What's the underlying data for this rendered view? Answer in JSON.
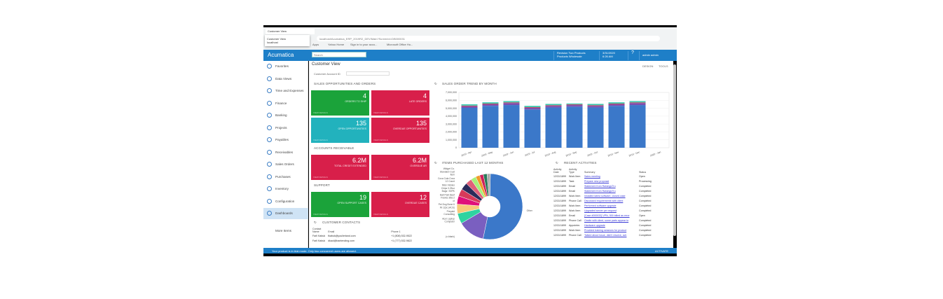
{
  "browser": {
    "tab_title": "Customer View",
    "tab_popup_title": "Customer View",
    "tab_popup_host": "localhost",
    "url": "localhost/Acumatica_ERP_2019R2_DEV/Main?ScreenId=DB000031",
    "bookmarks": [
      "Apps",
      "Yahoo Home",
      "Sign in to your acco...",
      "Microsoft Office Ho..."
    ]
  },
  "app": {
    "logo": "Acumatica",
    "search_placeholder": "Search",
    "company": "Revision Two Products",
    "branch": "Products Wholesale",
    "date": "3/31/2020",
    "time": "6:26 AM",
    "user": "admin admin"
  },
  "sidebar": {
    "items": [
      {
        "label": "Favorites",
        "icon": "star-icon"
      },
      {
        "label": "Data Views",
        "icon": "pie-icon"
      },
      {
        "label": "Time and Expenses",
        "icon": "clock-icon"
      },
      {
        "label": "Finance",
        "icon": "calculator-icon"
      },
      {
        "label": "Banking",
        "icon": "dollar-icon"
      },
      {
        "label": "Projects",
        "icon": "projects-icon"
      },
      {
        "label": "Payables",
        "icon": "minus-circle-icon"
      },
      {
        "label": "Receivables",
        "icon": "plus-circle-icon"
      },
      {
        "label": "Sales Orders",
        "icon": "pencil-icon"
      },
      {
        "label": "Purchases",
        "icon": "cart-icon"
      },
      {
        "label": "Inventory",
        "icon": "truck-icon"
      },
      {
        "label": "Configuration",
        "icon": "gear-icon"
      },
      {
        "label": "Dashboards",
        "icon": "dashboard-icon"
      }
    ],
    "more": "More Items"
  },
  "page": {
    "title": "Customer View",
    "design": "DESIGN",
    "tools": "TOOLS",
    "account_label": "Customer Account ID",
    "account_value": ""
  },
  "sections": {
    "sales": "SALES OPPORTUNITIES AND ORDERS",
    "ar": "ACCOUNTS RECEIVABLE",
    "support": "SUPPORT",
    "contacts": "CUSTOMER CONTACTS",
    "trend": "SALES ORDER TREND BY MONTH",
    "items": "ITEMS PURCHASED LAST 12 MONTHS",
    "activities": "RECENT ACTIVITIES"
  },
  "tiles": [
    {
      "value": "4",
      "label": "ORDERS TO SHIP",
      "foot": "VIEW DETAILS",
      "color": "#1ba33a"
    },
    {
      "value": "4",
      "label": "LATE ORDERS",
      "foot": "VIEW DETAILS",
      "color": "#d81f4a"
    },
    {
      "value": "135",
      "label": "OPEN OPPORTUNITIES",
      "foot": "VIEW DETAILS",
      "color": "#22b2bd"
    },
    {
      "value": "135",
      "label": "OVERDUE OPPORTUNITIES",
      "foot": "VIEW DETAILS",
      "color": "#d81f4a"
    },
    {
      "value": "6.2M",
      "label": "TOTAL CREDIT EXTENDED",
      "foot": "VIEW DETAILS",
      "color": "#d81f4a"
    },
    {
      "value": "6.2M",
      "label": "OVERDUE AR",
      "foot": "VIEW DETAILS",
      "color": "#d81f4a"
    },
    {
      "value": "19",
      "label": "OPEN SUPPORT CASES",
      "foot": "VIEW DETAILS",
      "color": "#1ba33a"
    },
    {
      "value": "12",
      "label": "OVERDUE CASES",
      "foot": "VIEW DETAILS",
      "color": "#d81f4a"
    }
  ],
  "contacts": {
    "headers": [
      "Contact Name",
      "Email",
      "Phone 1"
    ],
    "rows": [
      [
        "Farli Kabuk",
        "fkabuk@youlierland.com",
        "+1 (808) 532-9522"
      ],
      [
        "Farli Kabuk",
        "dkaol@bantending.com",
        "+1 (777) 532-9822"
      ]
    ]
  },
  "activities": {
    "headers": [
      "Activity Date",
      "Activity Type",
      "Summary",
      "Status"
    ],
    "rows": [
      [
        "12/31/1899",
        "Work Item",
        "Sales meeting",
        "Open"
      ],
      [
        "12/31/1899",
        "Task",
        "Prepare new proposal",
        "Processing"
      ],
      [
        "12/31/1899",
        "Email",
        "Statement from RaisingsTru",
        "Completed"
      ],
      [
        "12/31/1899",
        "Email",
        "Statement from RaisingsTru",
        "Completed"
      ],
      [
        "12/31/1899",
        "Work Item",
        "Installed latest software, closed case",
        "Completed"
      ],
      [
        "12/31/1899",
        "Phone Call",
        "Discussed requirements with client",
        "Completed"
      ],
      [
        "12/31/1899",
        "Work Item",
        "Performed software upgrade",
        "Completed"
      ],
      [
        "12/31/1899",
        "Work Item",
        "Upgraded server per request",
        "Completed"
      ],
      [
        "12/31/1899",
        "Email",
        "[Case #000033] VPN, 500 billed as error",
        "Open"
      ],
      [
        "12/31/1899",
        "Phone Call",
        "Onsite with client, some parts appear to",
        "Completed"
      ],
      [
        "12/31/1899",
        "Appointm.",
        "Hardware upgrade",
        "Completed"
      ],
      [
        "12/31/1899",
        "Work Item",
        "Provided training sessions for product",
        "Completed"
      ],
      [
        "12/31/1899",
        "Phone Call",
        "Talked about issue, didn't resolve, sch",
        "Completed"
      ]
    ]
  },
  "status_bar": {
    "message": "Your product is in trial mode. Only two concurrent users are allowed.",
    "action": "ACTIVATE"
  },
  "chart_data": [
    {
      "type": "bar",
      "stacked": true,
      "title": "SALES ORDER TREND BY MONTH",
      "ylim": [
        0,
        7000000
      ],
      "yticks": [
        "0",
        "1,000,000",
        "2,000,000",
        "3,000,000",
        "4,000,000",
        "5,000,000",
        "6,000,000",
        "7,000,000"
      ],
      "categories": [
        "2019 - Apr",
        "2019 - May",
        "2019 - Jun",
        "2019 - Jul",
        "2019 - Aug",
        "2019 - Sep",
        "2019 - Oct",
        "2019 - Nov",
        "2019 - Dec",
        "2020 - Jan"
      ],
      "series": [
        {
          "color": "#3b78c9",
          "values": [
            5050000,
            5300000,
            5400000,
            4850000,
            5100000,
            5200000,
            5100000,
            5300000,
            5400000,
            0
          ]
        },
        {
          "color": "#7a4fb0",
          "values": [
            200000,
            200000,
            250000,
            200000,
            200000,
            200000,
            200000,
            200000,
            250000,
            0
          ]
        },
        {
          "color": "#d0304f",
          "values": [
            80000,
            80000,
            80000,
            80000,
            80000,
            80000,
            80000,
            80000,
            80000,
            0
          ]
        },
        {
          "color": "#3cc9b0",
          "values": [
            170000,
            170000,
            170000,
            170000,
            170000,
            120000,
            170000,
            170000,
            170000,
            0
          ]
        }
      ],
      "grid": true
    },
    {
      "type": "pie",
      "donut": true,
      "title": "ITEMS PURCHASED LAST 12 MONTHS",
      "slices": [
        {
          "label": "Other",
          "value": 52,
          "color": "#3b78c9"
        },
        {
          "label": "(x-blank)",
          "value": 13,
          "color": "#7a5fc0"
        },
        {
          "label": "Acer Laptop Computer",
          "value": 5,
          "color": "#2fd3a0"
        },
        {
          "label": "Prepaid Consulting",
          "value": 4.5,
          "color": "#f7c97a"
        },
        {
          "label": "Pet Dog Bone 6 IN 12pc (ACE)",
          "value": 4,
          "color": "#e0107a"
        },
        {
          "label": "Ball Park Beef Franks 3lbs 2 ct",
          "value": 3.5,
          "color": "#d83a5a"
        },
        {
          "label": "Miss Vickies Chips 0.25oz Bags / 50PK",
          "value": 3.5,
          "color": "#2b2b5a"
        },
        {
          "label": "Coca Cola Coca 12 Count",
          "value": 3,
          "color": "#e0607a"
        },
        {
          "label": "",
          "value": 2.5,
          "color": "#a6f07a"
        },
        {
          "label": "",
          "value": 2,
          "color": "#f09a2a"
        },
        {
          "label": "",
          "value": 1.8,
          "color": "#d0205a"
        },
        {
          "label": "Widget Co. Standard Cust Item",
          "value": 1.8,
          "color": "#2a7a5a"
        },
        {
          "label": "",
          "value": 1.6,
          "color": "#aaaaaa"
        }
      ]
    }
  ]
}
